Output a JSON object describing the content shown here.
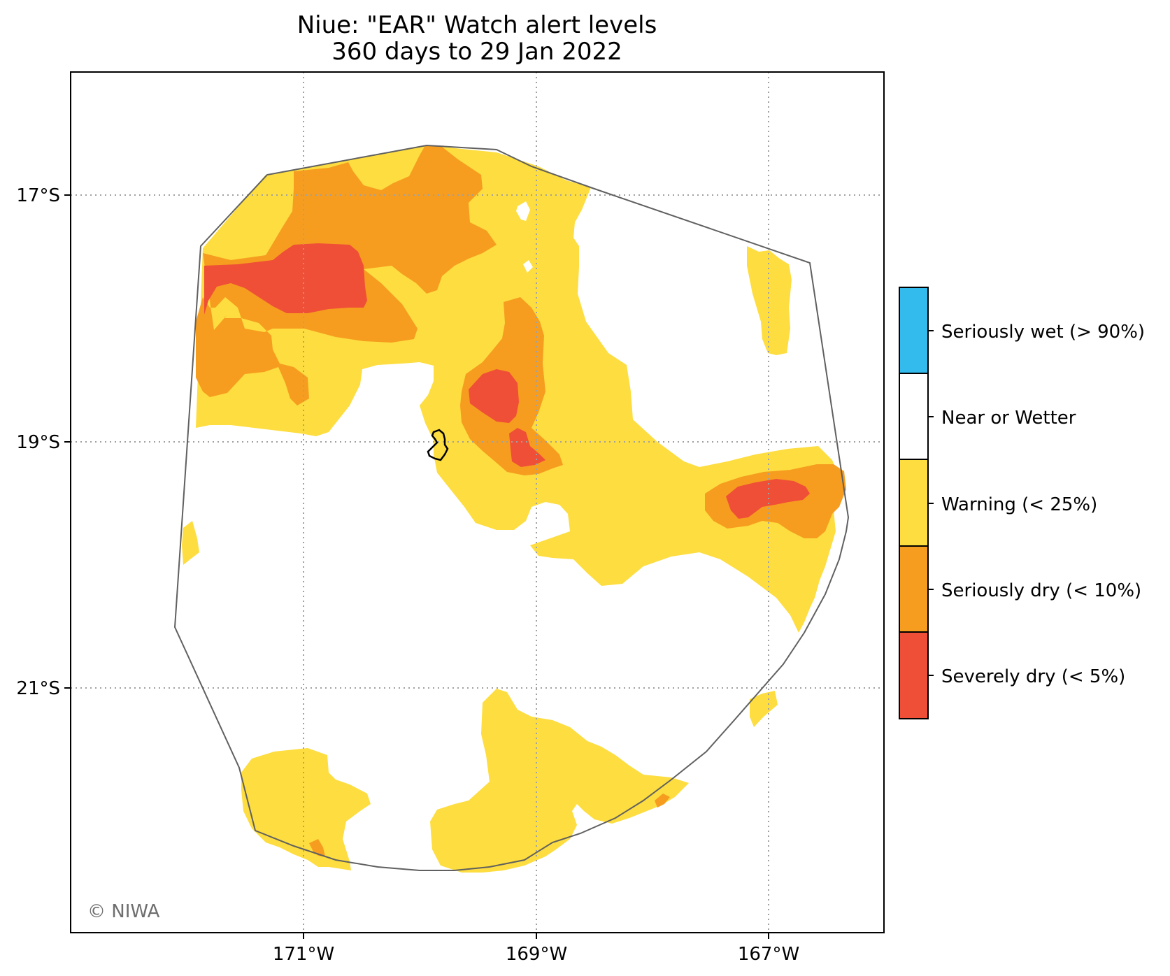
{
  "title": {
    "line1": "Niue: \"EAR\" Watch alert levels",
    "line2": "360 days to 29 Jan 2022"
  },
  "axes": {
    "x_ticks": [
      "171°W",
      "169°W",
      "167°W"
    ],
    "y_ticks": [
      "17°S",
      "19°S",
      "21°S"
    ]
  },
  "legend": {
    "items": [
      {
        "label": "Seriously wet (> 90%)",
        "color": "#33bbee"
      },
      {
        "label": "Near or Wetter",
        "color": "#ffffff"
      },
      {
        "label": "Warning (< 25%)",
        "color": "#fddd3f"
      },
      {
        "label": "Seriously dry (< 10%)",
        "color": "#f69d20"
      },
      {
        "label": "Severely dry (< 5%)",
        "color": "#ef4f36"
      }
    ]
  },
  "credit": "© NIWA",
  "colors": {
    "warning": "#fddd3f",
    "seriously_dry": "#f69d20",
    "severely_dry": "#ef4f36",
    "seriously_wet": "#33bbee",
    "boundary": "#606060",
    "island_outline": "#000000"
  }
}
